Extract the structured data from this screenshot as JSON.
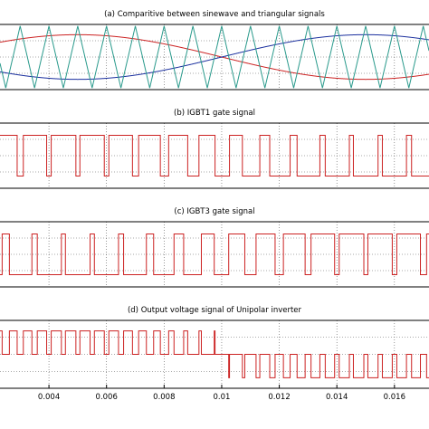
{
  "chart_data": [
    {
      "type": "line",
      "title": "(a) Comparitive between sinewave and triangular signals",
      "xlim": [
        0.0023,
        0.0172
      ],
      "ylim": [
        -1.05,
        1.05
      ],
      "grid": true,
      "series": [
        {
          "kind": "sine",
          "color": "#cc2222",
          "amplitude": 0.72,
          "frequency_hz": 50,
          "phase_deg": 0,
          "start_sign": 1
        },
        {
          "kind": "sine",
          "color": "#1a2f9e",
          "amplitude": 0.72,
          "frequency_hz": 50,
          "phase_deg": 180,
          "start_sign": -1
        },
        {
          "kind": "triangle",
          "color": "#2a9a8c",
          "amplitude": 1.0,
          "frequency_hz": 1000
        }
      ]
    },
    {
      "type": "line",
      "title": "(b) IGBT1 gate signal",
      "xlim": [
        0.0023,
        0.0172
      ],
      "ylim": [
        -0.3,
        1.3
      ],
      "grid": true,
      "series": [
        {
          "kind": "pwm",
          "color": "#cc2222",
          "modulating_phase_deg": 0,
          "carrier_hz": 1000,
          "mod_index": 0.72
        }
      ]
    },
    {
      "type": "line",
      "title": "(c) IGBT3 gate signal",
      "xlim": [
        0.0023,
        0.0172
      ],
      "ylim": [
        -0.3,
        1.3
      ],
      "grid": true,
      "series": [
        {
          "kind": "pwm",
          "color": "#cc2222",
          "modulating_phase_deg": 180,
          "carrier_hz": 1000,
          "mod_index": 0.72
        }
      ]
    },
    {
      "type": "line",
      "title": "(d)  Output voltage signal of Unipolar inverter",
      "xlim": [
        0.0023,
        0.0172
      ],
      "ylim": [
        -1.45,
        1.45
      ],
      "grid": true,
      "series": [
        {
          "kind": "unipolar",
          "color": "#cc2222",
          "carrier_hz": 1000,
          "mod_index": 0.72
        }
      ],
      "x_ticks": [
        0.004,
        0.006,
        0.008,
        0.01,
        0.012,
        0.014,
        0.016
      ],
      "x_tick_labels": [
        "0.004",
        "0.006",
        "0.008",
        "0.01",
        "0.012",
        "0.014",
        "0.016"
      ]
    }
  ]
}
